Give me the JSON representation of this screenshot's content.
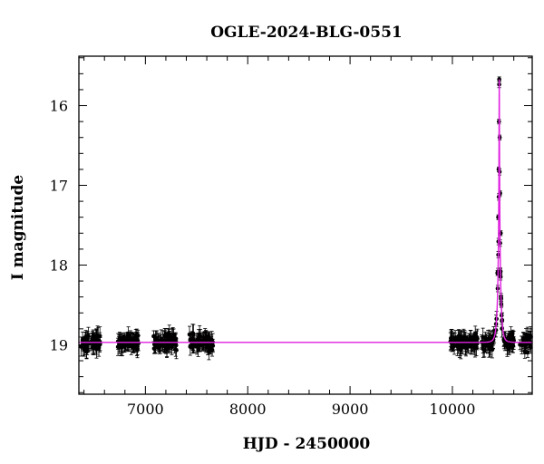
{
  "chart_data": {
    "type": "scatter",
    "title": "OGLE-2024-BLG-0551",
    "xlabel": "HJD - 2450000",
    "ylabel": "I magnitude",
    "xlim": [
      6350,
      10780
    ],
    "ylim": [
      19.62,
      15.38
    ],
    "y_inverted": true,
    "x_ticks": [
      7000,
      8000,
      9000,
      10000
    ],
    "y_ticks": [
      16,
      17,
      18,
      19
    ],
    "colors": {
      "model": "#e020e0",
      "points": "#000000"
    },
    "model": {
      "type": "point-lens",
      "baseline_mag": 18.97,
      "peak_time": 10458,
      "peak_mag": 15.67,
      "tE_days": 25
    },
    "observing_seasons": [
      {
        "x_start": 6370,
        "x_end": 6560,
        "mean_mag": 18.97
      },
      {
        "x_start": 6730,
        "x_end": 6940,
        "mean_mag": 18.97
      },
      {
        "x_start": 7080,
        "x_end": 7310,
        "mean_mag": 18.97
      },
      {
        "x_start": 7430,
        "x_end": 7660,
        "mean_mag": 18.97
      },
      {
        "x_start": 9980,
        "x_end": 10250,
        "mean_mag": 18.97
      },
      {
        "x_start": 10280,
        "x_end": 10600,
        "mean_mag": 18.97
      },
      {
        "x_start": 10660,
        "x_end": 10780,
        "mean_mag": 18.97
      }
    ],
    "peak_points": [
      {
        "x": 10440,
        "y": 18.1
      },
      {
        "x": 10448,
        "y": 17.4
      },
      {
        "x": 10452,
        "y": 16.8
      },
      {
        "x": 10455,
        "y": 16.2
      },
      {
        "x": 10458,
        "y": 15.67
      },
      {
        "x": 10462,
        "y": 16.4
      },
      {
        "x": 10466,
        "y": 17.1
      },
      {
        "x": 10472,
        "y": 17.6
      }
    ],
    "grid": false
  }
}
